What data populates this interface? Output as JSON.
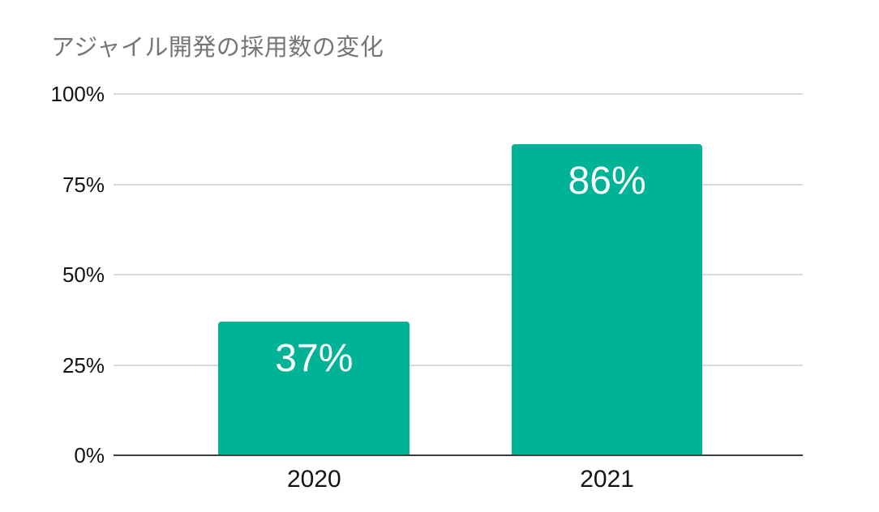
{
  "title": "アジャイル開発の採用数の変化",
  "colors": {
    "bar": "#00B397",
    "gridline": "#DADADA",
    "axis_line": "#3F3F3F",
    "title_text": "#757575",
    "tick_text": "#131313",
    "bar_label_text": "#FFFFFF",
    "background": "#FFFFFF"
  },
  "chart_data": {
    "type": "bar",
    "title": "アジャイル開発の採用数の変化",
    "categories": [
      "2020",
      "2021"
    ],
    "values": [
      37,
      86
    ],
    "bar_labels": [
      "37%",
      "86%"
    ],
    "yticks": [
      {
        "label": "100%",
        "value": 100
      },
      {
        "label": "75%",
        "value": 75
      },
      {
        "label": "50%",
        "value": 50
      },
      {
        "label": "25%",
        "value": 25
      },
      {
        "label": "0%",
        "value": 0
      }
    ],
    "ylim": [
      0,
      100
    ],
    "xlabel": "",
    "ylabel": "",
    "grid": true,
    "legend": false,
    "bar_color": "#00B397"
  }
}
